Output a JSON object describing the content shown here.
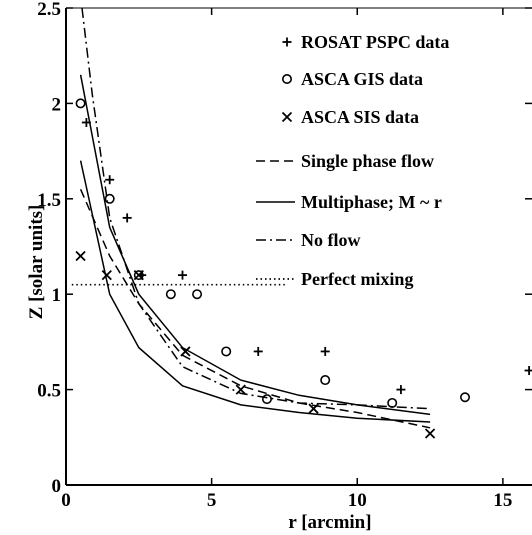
{
  "chart_data": {
    "type": "scatter",
    "xlabel": "r [arcmin]",
    "ylabel": "Z [solar units]",
    "xlim": [
      0,
      16
    ],
    "ylim": [
      0,
      2.5
    ],
    "x_ticks": [
      0,
      5,
      10,
      15
    ],
    "x_tick_labels": [
      "0",
      "5",
      "10",
      "15"
    ],
    "y_ticks": [
      0,
      0.5,
      1,
      1.5,
      2,
      2.5
    ],
    "y_tick_labels": [
      "0",
      "0.5",
      "1",
      "1.5",
      "2",
      "2.5"
    ],
    "grid": false,
    "legend_position": "top-right",
    "series": [
      {
        "name": "ROSAT PSPC data",
        "kind": "scatter",
        "marker": "plus",
        "points": [
          [
            0.7,
            1.9
          ],
          [
            1.5,
            1.6
          ],
          [
            2.1,
            1.4
          ],
          [
            2.6,
            1.1
          ],
          [
            4.0,
            1.1
          ],
          [
            6.6,
            0.7
          ],
          [
            8.9,
            0.7
          ],
          [
            11.5,
            0.5
          ],
          [
            15.9,
            0.6
          ]
        ]
      },
      {
        "name": "ASCA GIS data",
        "kind": "scatter",
        "marker": "circle",
        "points": [
          [
            0.5,
            2.0
          ],
          [
            1.5,
            1.5
          ],
          [
            2.5,
            1.1
          ],
          [
            3.6,
            1.0
          ],
          [
            4.5,
            1.0
          ],
          [
            5.5,
            0.7
          ],
          [
            6.9,
            0.45
          ],
          [
            8.9,
            0.55
          ],
          [
            11.2,
            0.43
          ],
          [
            13.7,
            0.46
          ]
        ]
      },
      {
        "name": "ASCA SIS data",
        "kind": "scatter",
        "marker": "x",
        "points": [
          [
            0.5,
            1.2
          ],
          [
            1.4,
            1.1
          ],
          [
            2.5,
            1.1
          ],
          [
            4.1,
            0.7
          ],
          [
            6.0,
            0.5
          ],
          [
            8.5,
            0.4
          ],
          [
            12.5,
            0.27
          ]
        ]
      },
      {
        "name": "Single phase flow",
        "kind": "line",
        "dash": "dashed",
        "points": [
          [
            0.5,
            1.55
          ],
          [
            1.5,
            1.2
          ],
          [
            2.5,
            0.95
          ],
          [
            4,
            0.68
          ],
          [
            6,
            0.52
          ],
          [
            8,
            0.43
          ],
          [
            10,
            0.38
          ],
          [
            12.5,
            0.3
          ]
        ]
      },
      {
        "name": "Multiphase; M ~ r",
        "kind": "line",
        "dash": "solid",
        "points": [
          [
            0.5,
            2.15
          ],
          [
            1.5,
            1.35
          ],
          [
            2.5,
            1.0
          ],
          [
            4,
            0.72
          ],
          [
            6,
            0.55
          ],
          [
            8,
            0.47
          ],
          [
            10,
            0.42
          ],
          [
            12.5,
            0.37
          ]
        ]
      },
      {
        "name": "Multiphase; M ~ r",
        "legend": false,
        "kind": "line",
        "dash": "solid",
        "points": [
          [
            0.5,
            1.7
          ],
          [
            1.5,
            1.0
          ],
          [
            2.5,
            0.72
          ],
          [
            4,
            0.52
          ],
          [
            6,
            0.42
          ],
          [
            8,
            0.38
          ],
          [
            10,
            0.35
          ],
          [
            12.5,
            0.33
          ]
        ]
      },
      {
        "name": "No flow",
        "kind": "line",
        "dash": "dashdot",
        "points": [
          [
            0.55,
            2.5
          ],
          [
            0.9,
            2.05
          ],
          [
            1.5,
            1.4
          ],
          [
            2.5,
            0.95
          ],
          [
            4,
            0.62
          ],
          [
            6,
            0.48
          ],
          [
            8,
            0.43
          ],
          [
            10,
            0.42
          ],
          [
            12.5,
            0.4
          ]
        ]
      },
      {
        "name": "Perfect mixing",
        "kind": "line",
        "dash": "dotted",
        "points": [
          [
            0.2,
            1.05
          ],
          [
            7.6,
            1.05
          ]
        ]
      }
    ]
  }
}
